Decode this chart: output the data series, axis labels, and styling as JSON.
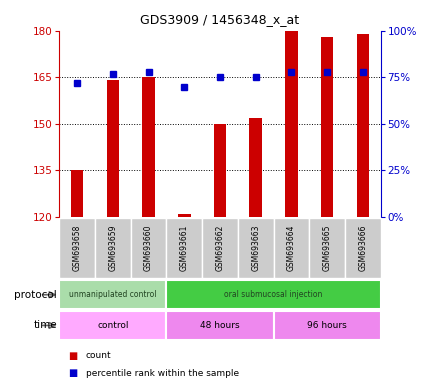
{
  "title": "GDS3909 / 1456348_x_at",
  "samples": [
    "GSM693658",
    "GSM693659",
    "GSM693660",
    "GSM693661",
    "GSM693662",
    "GSM693663",
    "GSM693664",
    "GSM693665",
    "GSM693666"
  ],
  "counts": [
    135,
    164,
    165,
    121,
    150,
    152,
    180,
    178,
    179
  ],
  "percentile_ranks": [
    72,
    77,
    78,
    70,
    75,
    75,
    78,
    78,
    78
  ],
  "ylim_left": [
    120,
    180
  ],
  "ylim_right": [
    0,
    100
  ],
  "yticks_left": [
    120,
    135,
    150,
    165,
    180
  ],
  "yticks_right": [
    0,
    25,
    50,
    75,
    100
  ],
  "bar_color": "#cc0000",
  "dot_color": "#0000cc",
  "protocol_groups": [
    {
      "label": "unmanipulated control",
      "start": 0,
      "end": 3,
      "color": "#aaddaa"
    },
    {
      "label": "oral submucosal injection",
      "start": 3,
      "end": 9,
      "color": "#44cc44"
    }
  ],
  "time_groups": [
    {
      "label": "control",
      "start": 0,
      "end": 3,
      "color": "#ffaaff"
    },
    {
      "label": "48 hours",
      "start": 3,
      "end": 6,
      "color": "#dd88dd"
    },
    {
      "label": "96 hours",
      "start": 6,
      "end": 9,
      "color": "#dd88dd"
    }
  ],
  "left_axis_color": "#cc0000",
  "right_axis_color": "#0000cc",
  "bg_color": "#ffffff",
  "sample_bg_color": "#cccccc",
  "bar_width": 0.35
}
